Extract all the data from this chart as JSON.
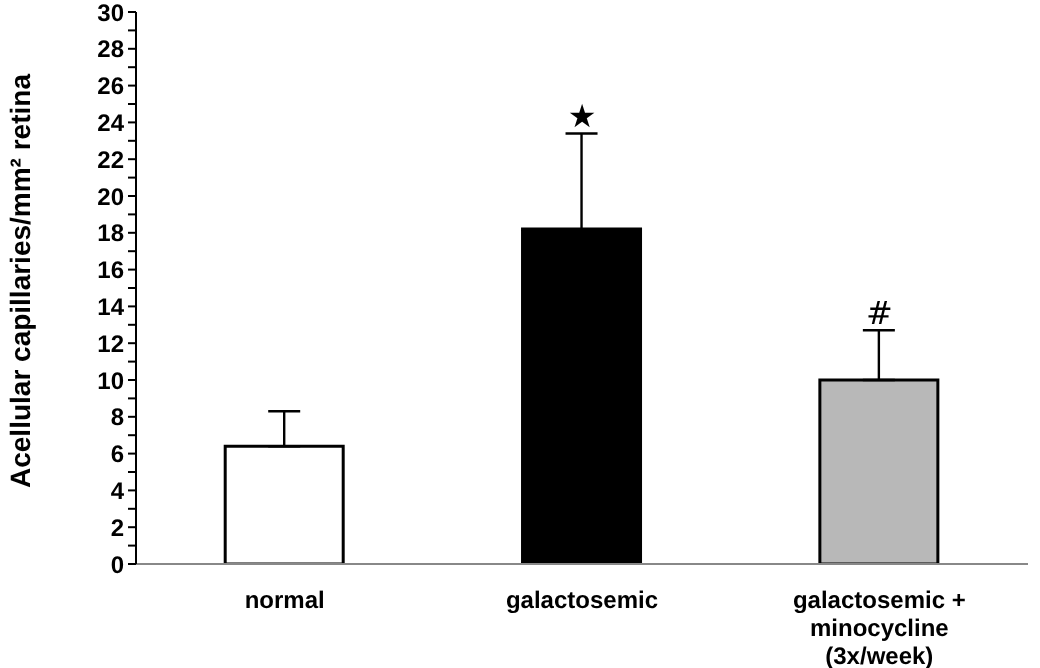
{
  "chart_data": {
    "type": "bar",
    "ylabel": "Acellular capillaries/mm² retina",
    "categories": [
      "normal",
      "galactosemic",
      "galactosemic + minocycline (3x/week)"
    ],
    "values": [
      6.4,
      18.2,
      10.0
    ],
    "errors": [
      1.9,
      5.2,
      2.7
    ],
    "colors": [
      "#ffffff",
      "#000000",
      "#b8b8b8"
    ],
    "ylim": [
      0,
      30
    ],
    "yticks": [
      0,
      {
        "value": 1,
        "label": null
      },
      2,
      {
        "value": 3,
        "label": null
      },
      4,
      {
        "value": 5,
        "label": null
      },
      6,
      {
        "value": 7,
        "label": null
      },
      8,
      {
        "value": 9,
        "label": null
      },
      10,
      {
        "value": 11,
        "label": null
      },
      12,
      {
        "value": 13,
        "label": null
      },
      14,
      {
        "value": 15,
        "label": null
      },
      16,
      {
        "value": 17,
        "label": null
      },
      18,
      {
        "value": 19,
        "label": null
      },
      20,
      {
        "value": 21,
        "label": null
      },
      22,
      {
        "value": 23,
        "label": null
      },
      24,
      {
        "value": 25,
        "label": null
      },
      26,
      {
        "value": 27,
        "label": null
      },
      28,
      {
        "value": 29,
        "label": null
      },
      30
    ],
    "annotations": [
      "★",
      "#"
    ],
    "grid": false,
    "legend": false
  }
}
